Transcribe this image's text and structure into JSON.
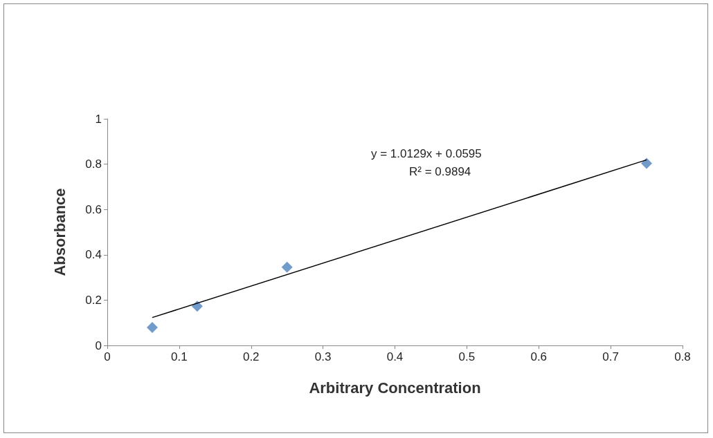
{
  "chart_data": {
    "type": "scatter",
    "xlabel": "Arbitrary Concentration",
    "ylabel": "Absorbance",
    "x": [
      0.0625,
      0.125,
      0.25,
      0.75
    ],
    "series": [
      {
        "color": "#4f81bd",
        "marker": "diamond",
        "values": [
          0.079,
          0.173,
          0.345,
          0.803
        ]
      },
      {
        "type": "line",
        "color": "#000000",
        "marker": "none",
        "x": [
          0.0625,
          0.75
        ],
        "values": [
          0.123,
          0.819
        ]
      }
    ],
    "annotations": [
      "y = 1.0129x + 0.0595",
      "R² = 0.9894"
    ],
    "xlim": [
      0,
      0.8
    ],
    "xticks": [
      0,
      0.1,
      0.2,
      0.3,
      0.4,
      0.5,
      0.6,
      0.7,
      0.8
    ],
    "ylim": [
      0,
      1
    ],
    "yticks": [
      0,
      0.2,
      0.4,
      0.6,
      0.8,
      1
    ],
    "grid": false
  }
}
